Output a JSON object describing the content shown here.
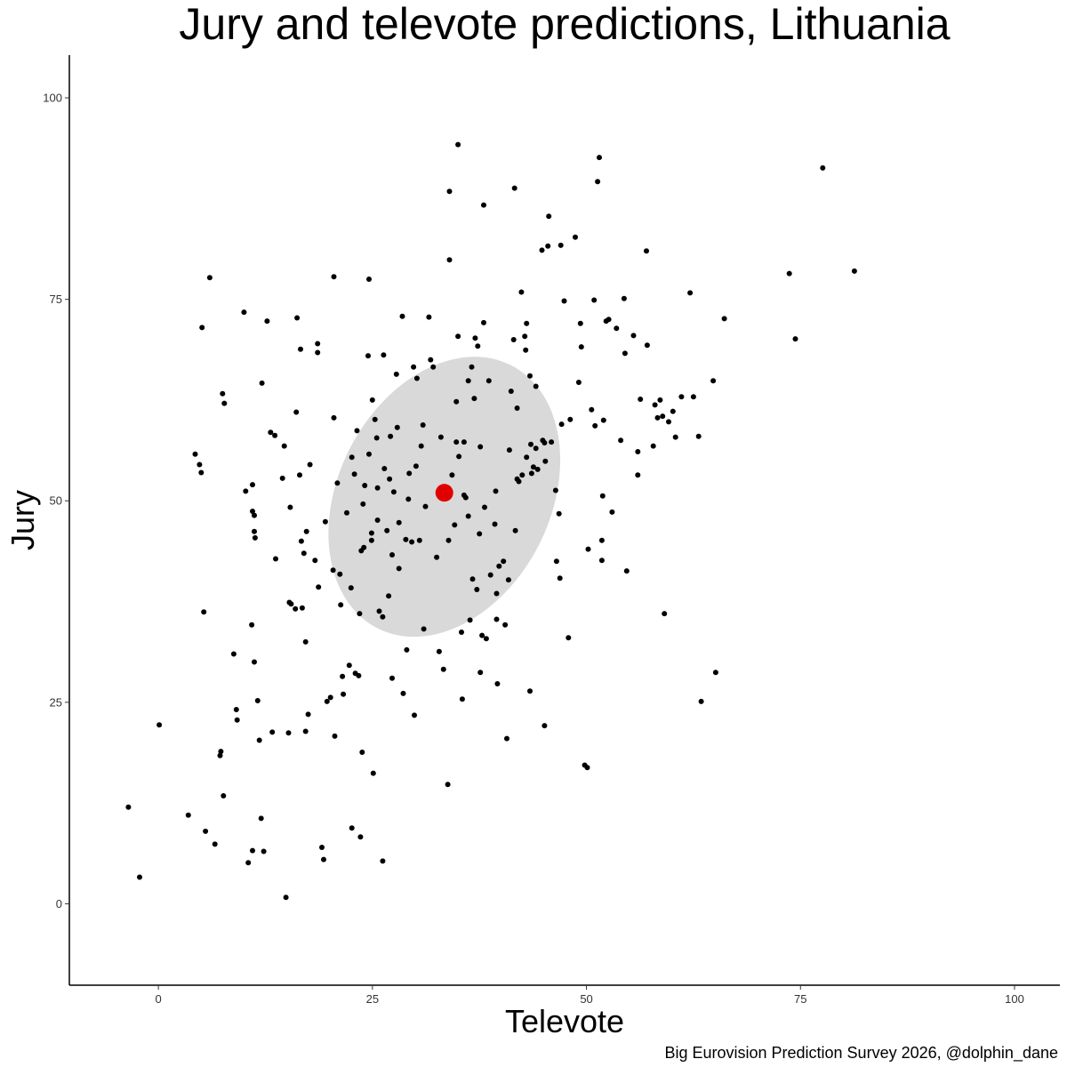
{
  "chart_data": {
    "type": "scatter",
    "title": "Jury and televote predictions, Lithuania",
    "xlabel": "Televote",
    "ylabel": "Jury",
    "caption": "Big Eurovision Prediction Survey 2026, @dolphin_dane",
    "xlim": [
      -10.4,
      105.3
    ],
    "ylim": [
      -10.1,
      105.3
    ],
    "x_ticks": [
      0,
      25,
      50,
      75,
      100
    ],
    "y_ticks": [
      0,
      25,
      50,
      75,
      100
    ],
    "grid": false,
    "legend": "none",
    "colors": {
      "points": "#000000",
      "highlight": "#e00000",
      "ellipse": "#d9d9d9"
    },
    "highlight_point": {
      "x": 33.4,
      "y": 51.0
    },
    "ellipse": {
      "cx": 33.4,
      "cy": 50.5,
      "rx_data": 12.4,
      "ry_data": 18.3,
      "angle_deg": 27
    },
    "points": [
      [
        -3.5,
        12.0
      ],
      [
        -2.2,
        3.3
      ],
      [
        0.1,
        22.2
      ],
      [
        3.5,
        11.0
      ],
      [
        4.3,
        55.8
      ],
      [
        4.8,
        54.5
      ],
      [
        5.0,
        53.5
      ],
      [
        5.1,
        71.5
      ],
      [
        5.3,
        36.2
      ],
      [
        5.5,
        9.0
      ],
      [
        6.0,
        77.7
      ],
      [
        6.6,
        7.4
      ],
      [
        7.2,
        18.4
      ],
      [
        7.3,
        18.9
      ],
      [
        7.5,
        63.3
      ],
      [
        7.6,
        13.4
      ],
      [
        7.7,
        62.1
      ],
      [
        8.8,
        31.0
      ],
      [
        9.1,
        24.1
      ],
      [
        9.2,
        22.8
      ],
      [
        10.0,
        73.4
      ],
      [
        10.2,
        51.2
      ],
      [
        10.5,
        5.1
      ],
      [
        10.9,
        34.6
      ],
      [
        11.0,
        6.6
      ],
      [
        11.0,
        52.0
      ],
      [
        11.0,
        48.7
      ],
      [
        11.2,
        30.0
      ],
      [
        11.2,
        46.2
      ],
      [
        11.2,
        48.2
      ],
      [
        11.3,
        45.4
      ],
      [
        11.6,
        25.2
      ],
      [
        11.8,
        20.3
      ],
      [
        12.0,
        10.6
      ],
      [
        12.1,
        64.6
      ],
      [
        12.3,
        6.5
      ],
      [
        12.7,
        72.3
      ],
      [
        13.1,
        58.5
      ],
      [
        13.3,
        21.3
      ],
      [
        13.6,
        58.1
      ],
      [
        13.7,
        42.8
      ],
      [
        14.5,
        52.8
      ],
      [
        14.7,
        56.8
      ],
      [
        14.9,
        0.8
      ],
      [
        15.2,
        21.2
      ],
      [
        15.3,
        37.4
      ],
      [
        15.4,
        49.2
      ],
      [
        15.5,
        37.2
      ],
      [
        16.0,
        36.6
      ],
      [
        16.1,
        61.0
      ],
      [
        16.2,
        72.7
      ],
      [
        16.5,
        53.2
      ],
      [
        16.6,
        68.8
      ],
      [
        16.7,
        45.0
      ],
      [
        16.8,
        36.7
      ],
      [
        17.0,
        43.5
      ],
      [
        17.2,
        21.4
      ],
      [
        17.2,
        32.5
      ],
      [
        17.3,
        46.2
      ],
      [
        17.5,
        23.5
      ],
      [
        17.7,
        54.5
      ],
      [
        18.3,
        42.6
      ],
      [
        18.6,
        69.5
      ],
      [
        18.6,
        68.4
      ],
      [
        18.7,
        39.3
      ],
      [
        19.1,
        7.0
      ],
      [
        19.3,
        5.5
      ],
      [
        19.5,
        47.4
      ],
      [
        19.7,
        25.1
      ],
      [
        20.1,
        25.6
      ],
      [
        20.4,
        41.4
      ],
      [
        20.5,
        60.3
      ],
      [
        20.5,
        77.8
      ],
      [
        20.6,
        20.8
      ],
      [
        20.9,
        52.2
      ],
      [
        21.2,
        40.9
      ],
      [
        21.3,
        37.1
      ],
      [
        21.5,
        28.2
      ],
      [
        21.6,
        26.0
      ],
      [
        22.0,
        48.5
      ],
      [
        22.3,
        29.6
      ],
      [
        22.5,
        39.2
      ],
      [
        22.6,
        9.4
      ],
      [
        22.9,
        53.3
      ],
      [
        23.0,
        28.6
      ],
      [
        23.2,
        58.7
      ],
      [
        23.4,
        28.3
      ],
      [
        23.5,
        36.0
      ],
      [
        23.6,
        8.3
      ],
      [
        23.7,
        43.8
      ],
      [
        23.8,
        18.8
      ],
      [
        23.9,
        49.6
      ],
      [
        24.0,
        44.2
      ],
      [
        24.5,
        68.0
      ],
      [
        24.6,
        77.5
      ],
      [
        24.6,
        55.8
      ],
      [
        24.9,
        46.0
      ],
      [
        24.9,
        45.1
      ],
      [
        25.0,
        62.5
      ],
      [
        25.1,
        16.2
      ],
      [
        25.3,
        60.1
      ],
      [
        25.5,
        57.8
      ],
      [
        25.6,
        51.6
      ],
      [
        25.6,
        47.6
      ],
      [
        25.8,
        36.3
      ],
      [
        26.2,
        5.3
      ],
      [
        26.2,
        35.6
      ],
      [
        26.3,
        68.1
      ],
      [
        26.4,
        54.0
      ],
      [
        26.7,
        46.3
      ],
      [
        26.9,
        38.2
      ],
      [
        27.0,
        52.7
      ],
      [
        27.1,
        58.0
      ],
      [
        27.3,
        28.0
      ],
      [
        27.5,
        51.1
      ],
      [
        27.8,
        65.7
      ],
      [
        27.9,
        59.1
      ],
      [
        28.1,
        47.3
      ],
      [
        28.5,
        72.9
      ],
      [
        28.6,
        26.1
      ],
      [
        28.9,
        45.2
      ],
      [
        29.0,
        31.5
      ],
      [
        29.2,
        50.2
      ],
      [
        29.3,
        53.4
      ],
      [
        29.6,
        44.9
      ],
      [
        29.8,
        66.6
      ],
      [
        29.9,
        23.4
      ],
      [
        30.1,
        54.3
      ],
      [
        30.2,
        65.2
      ],
      [
        30.5,
        45.1
      ],
      [
        30.9,
        59.4
      ],
      [
        31.0,
        34.1
      ],
      [
        31.2,
        49.3
      ],
      [
        31.6,
        72.8
      ],
      [
        31.8,
        67.5
      ],
      [
        32.1,
        66.6
      ],
      [
        32.5,
        43.0
      ],
      [
        32.8,
        31.3
      ],
      [
        33.0,
        57.9
      ],
      [
        33.3,
        29.1
      ],
      [
        33.4,
        51.0
      ],
      [
        33.8,
        14.8
      ],
      [
        33.9,
        45.1
      ],
      [
        34.0,
        88.4
      ],
      [
        34.0,
        79.9
      ],
      [
        34.3,
        53.2
      ],
      [
        34.6,
        47.0
      ],
      [
        34.8,
        57.3
      ],
      [
        34.8,
        62.3
      ],
      [
        35.0,
        94.2
      ],
      [
        35.0,
        70.4
      ],
      [
        35.1,
        55.5
      ],
      [
        35.4,
        33.7
      ],
      [
        35.5,
        25.4
      ],
      [
        35.7,
        57.3
      ],
      [
        35.7,
        50.7
      ],
      [
        35.9,
        50.4
      ],
      [
        36.2,
        64.9
      ],
      [
        36.2,
        48.1
      ],
      [
        36.6,
        66.6
      ],
      [
        36.7,
        40.3
      ],
      [
        36.9,
        62.7
      ],
      [
        37.0,
        70.2
      ],
      [
        37.2,
        39.0
      ],
      [
        37.3,
        69.2
      ],
      [
        37.6,
        28.7
      ],
      [
        37.6,
        56.7
      ],
      [
        37.8,
        33.3
      ],
      [
        38.0,
        86.7
      ],
      [
        38.0,
        72.1
      ],
      [
        38.1,
        49.2
      ],
      [
        38.3,
        32.9
      ],
      [
        38.6,
        64.9
      ],
      [
        38.8,
        40.8
      ],
      [
        39.3,
        47.1
      ],
      [
        39.4,
        51.2
      ],
      [
        39.5,
        35.3
      ],
      [
        39.6,
        27.3
      ],
      [
        39.8,
        41.9
      ],
      [
        40.3,
        42.5
      ],
      [
        40.5,
        34.6
      ],
      [
        40.7,
        20.5
      ],
      [
        40.9,
        40.2
      ],
      [
        41.0,
        56.3
      ],
      [
        41.2,
        63.6
      ],
      [
        41.5,
        70.0
      ],
      [
        41.6,
        88.8
      ],
      [
        41.9,
        61.5
      ],
      [
        41.9,
        52.7
      ],
      [
        42.1,
        52.4
      ],
      [
        42.4,
        75.9
      ],
      [
        42.5,
        53.2
      ],
      [
        42.8,
        70.4
      ],
      [
        42.9,
        68.7
      ],
      [
        43.0,
        72.0
      ],
      [
        43.0,
        55.4
      ],
      [
        43.4,
        65.5
      ],
      [
        43.5,
        57.0
      ],
      [
        43.6,
        53.4
      ],
      [
        43.8,
        54.2
      ],
      [
        44.1,
        64.2
      ],
      [
        44.1,
        56.5
      ],
      [
        44.3,
        53.9
      ],
      [
        44.8,
        81.1
      ],
      [
        44.9,
        57.5
      ],
      [
        45.1,
        57.2
      ],
      [
        45.1,
        22.1
      ],
      [
        45.2,
        54.9
      ],
      [
        45.5,
        81.6
      ],
      [
        45.6,
        85.3
      ],
      [
        45.9,
        57.3
      ],
      [
        46.4,
        51.3
      ],
      [
        46.5,
        42.5
      ],
      [
        46.9,
        40.4
      ],
      [
        47.0,
        81.7
      ],
      [
        47.1,
        59.5
      ],
      [
        47.4,
        74.8
      ],
      [
        47.9,
        33.0
      ],
      [
        48.1,
        60.1
      ],
      [
        48.7,
        82.7
      ],
      [
        49.1,
        64.7
      ],
      [
        49.3,
        72.0
      ],
      [
        49.4,
        69.1
      ],
      [
        49.8,
        17.2
      ],
      [
        50.1,
        16.9
      ],
      [
        50.2,
        44.0
      ],
      [
        50.6,
        61.3
      ],
      [
        50.9,
        74.9
      ],
      [
        51.0,
        59.3
      ],
      [
        51.3,
        89.6
      ],
      [
        51.5,
        92.6
      ],
      [
        51.8,
        42.6
      ],
      [
        51.8,
        45.1
      ],
      [
        51.9,
        50.6
      ],
      [
        52.0,
        60.0
      ],
      [
        52.3,
        72.3
      ],
      [
        52.6,
        72.5
      ],
      [
        53.0,
        48.6
      ],
      [
        53.5,
        71.4
      ],
      [
        54.0,
        57.5
      ],
      [
        54.4,
        75.1
      ],
      [
        54.5,
        68.3
      ],
      [
        54.7,
        41.3
      ],
      [
        55.5,
        70.5
      ],
      [
        56.0,
        56.1
      ],
      [
        56.0,
        53.2
      ],
      [
        56.3,
        62.6
      ],
      [
        57.0,
        81.0
      ],
      [
        57.1,
        69.3
      ],
      [
        57.8,
        56.8
      ],
      [
        58.0,
        61.9
      ],
      [
        58.3,
        60.3
      ],
      [
        58.6,
        62.5
      ],
      [
        58.9,
        60.5
      ],
      [
        59.1,
        36.0
      ],
      [
        59.6,
        59.8
      ],
      [
        60.1,
        61.1
      ],
      [
        60.4,
        57.9
      ],
      [
        61.1,
        62.9
      ],
      [
        62.1,
        75.8
      ],
      [
        62.5,
        62.9
      ],
      [
        63.1,
        58.0
      ],
      [
        63.4,
        25.1
      ],
      [
        64.8,
        64.9
      ],
      [
        65.1,
        28.7
      ],
      [
        66.1,
        72.6
      ],
      [
        73.7,
        78.2
      ],
      [
        74.4,
        70.1
      ],
      [
        77.6,
        91.3
      ],
      [
        81.3,
        78.5
      ],
      [
        39.5,
        38.5
      ],
      [
        28.1,
        41.6
      ],
      [
        36.4,
        35.2
      ],
      [
        43.4,
        26.4
      ],
      [
        22.6,
        55.4
      ],
      [
        27.3,
        43.3
      ],
      [
        30.7,
        56.8
      ],
      [
        46.8,
        48.4
      ],
      [
        37.5,
        45.9
      ],
      [
        24.1,
        51.9
      ],
      [
        41.7,
        46.3
      ]
    ]
  }
}
